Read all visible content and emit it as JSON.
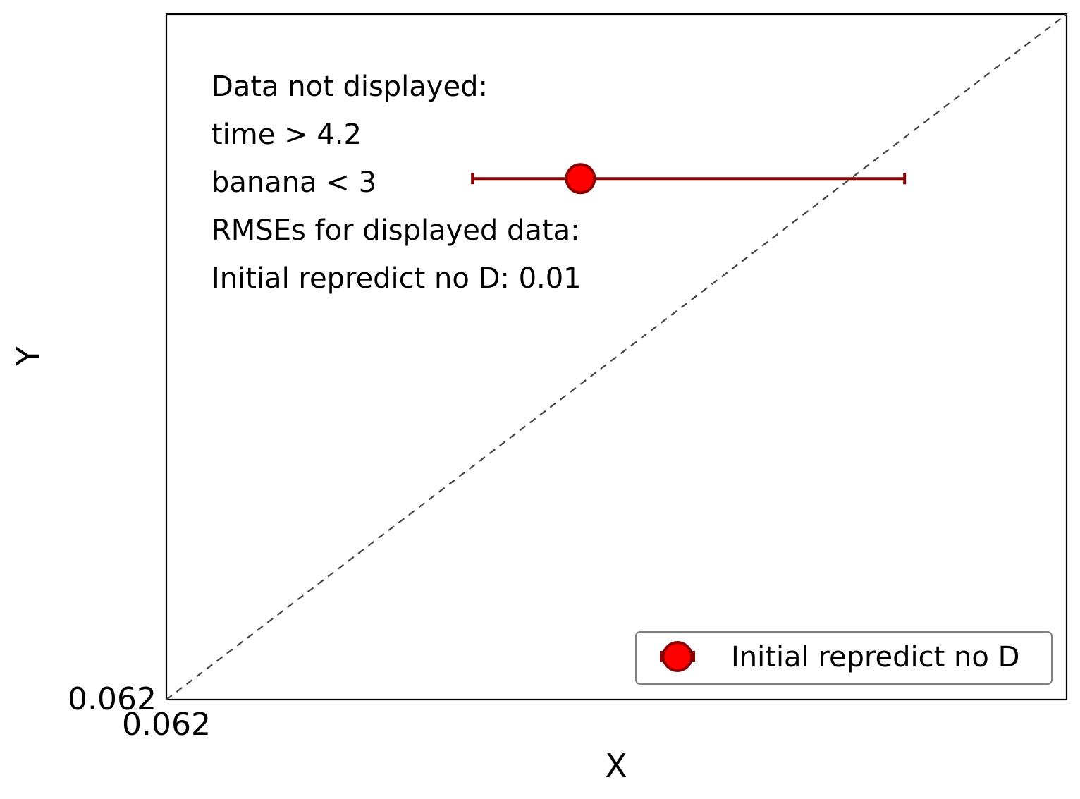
{
  "chart_data": {
    "type": "scatter",
    "xlabel": "X",
    "ylabel": "Y",
    "x_ticks": [
      "0.062"
    ],
    "y_ticks": [
      "0.062"
    ],
    "xlim": [
      0.062,
      0.0645
    ],
    "ylim": [
      0.062,
      0.0645
    ],
    "reference_line": "y = x",
    "grid": false,
    "legend_position": "lower-right",
    "annotations": [
      "Data not displayed:",
      "time > 4.2",
      "banana < 3",
      "RMSEs for displayed data:",
      "Initial repredict no D: 0.01"
    ],
    "series": [
      {
        "name": "Initial repredict no D",
        "color": "#ff0000",
        "edge_color": "#8b0000",
        "points": [
          {
            "x": 0.06315,
            "y": 0.0639,
            "xerr_low": 0.06285,
            "xerr_high": 0.06405
          }
        ]
      }
    ]
  }
}
